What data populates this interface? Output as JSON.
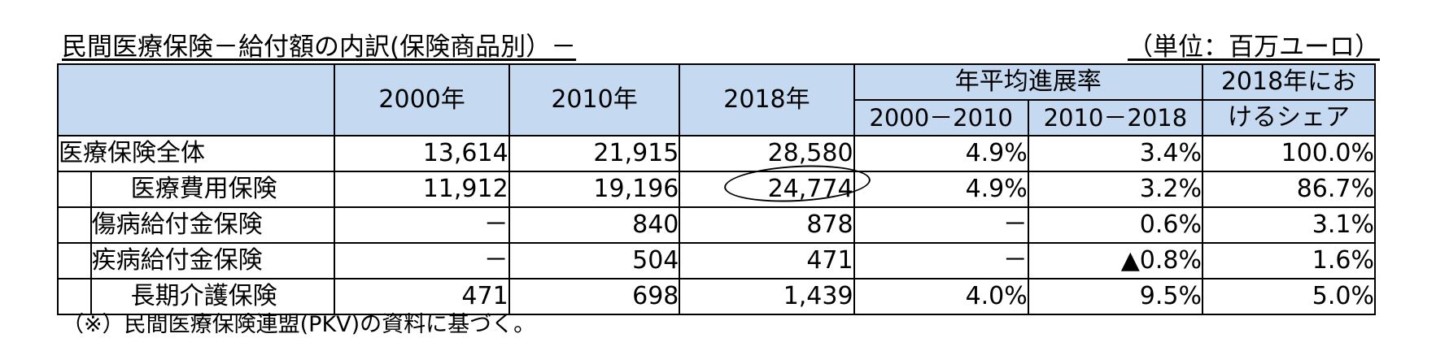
{
  "title": "民間医療保険－給付額の内訳(保険商品別）－",
  "unit": "（単位：百万ユーロ）",
  "headers": {
    "y2000": "2000年",
    "y2010": "2010年",
    "y2018": "2018年",
    "growth": "年平均進展率",
    "growth_2000_2010": "2000－2010",
    "growth_2010_2018": "2010－2018",
    "share_line1": "2018年にお",
    "share_line2": "けるシェア"
  },
  "rows": [
    {
      "label": "医療保険全体",
      "y2000": "13,614",
      "y2010": "21,915",
      "y2018": "28,580",
      "g1": "4.9%",
      "g2": "3.4%",
      "share": "100.0%"
    },
    {
      "label": "医療費用保険",
      "y2000": "11,912",
      "y2010": "19,196",
      "y2018": "24,774",
      "g1": "4.9%",
      "g2": "3.2%",
      "share": "86.7%"
    },
    {
      "label": "傷病給付金保険",
      "y2000": "－",
      "y2010": "840",
      "y2018": "878",
      "g1": "－",
      "g2": "0.6%",
      "share": "3.1%"
    },
    {
      "label": "疾病給付金保険",
      "y2000": "－",
      "y2010": "504",
      "y2018": "471",
      "g1": "－",
      "g2": "▲0.8%",
      "share": "1.6%"
    },
    {
      "label": "長期介護保険",
      "y2000": "471",
      "y2010": "698",
      "y2018": "1,439",
      "g1": "4.0%",
      "g2": "9.5%",
      "share": "5.0%"
    }
  ],
  "note": "（※）民間医療保険連盟(PKV)の資料に基づく。"
}
